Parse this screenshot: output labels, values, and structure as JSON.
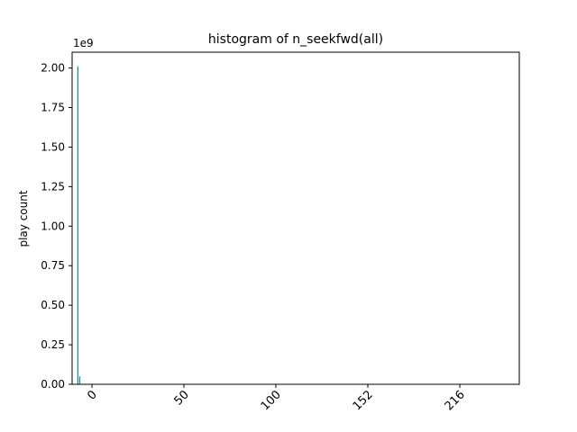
{
  "chart_data": {
    "type": "bar",
    "title": "histogram of n_seekfwd(all)",
    "xlabel": "",
    "ylabel": "play count",
    "y_multiplier_label": "1e9",
    "y_multiplier": 1000000000,
    "ylim": [
      0,
      2.1
    ],
    "xlim": [
      -3,
      232
    ],
    "yticks": [
      0.0,
      0.25,
      0.5,
      0.75,
      1.0,
      1.25,
      1.5,
      1.75,
      2.0
    ],
    "ytick_labels": [
      "0.00",
      "0.25",
      "0.50",
      "0.75",
      "1.00",
      "1.25",
      "1.50",
      "1.75",
      "2.00"
    ],
    "xtick_labels": [
      "0",
      "50",
      "100",
      "152",
      "216"
    ],
    "bar_color": "#1f7f8f",
    "grid": false,
    "bars": [
      {
        "x": 0,
        "value": 2.01
      },
      {
        "x": 1,
        "value": 0.05
      }
    ]
  }
}
